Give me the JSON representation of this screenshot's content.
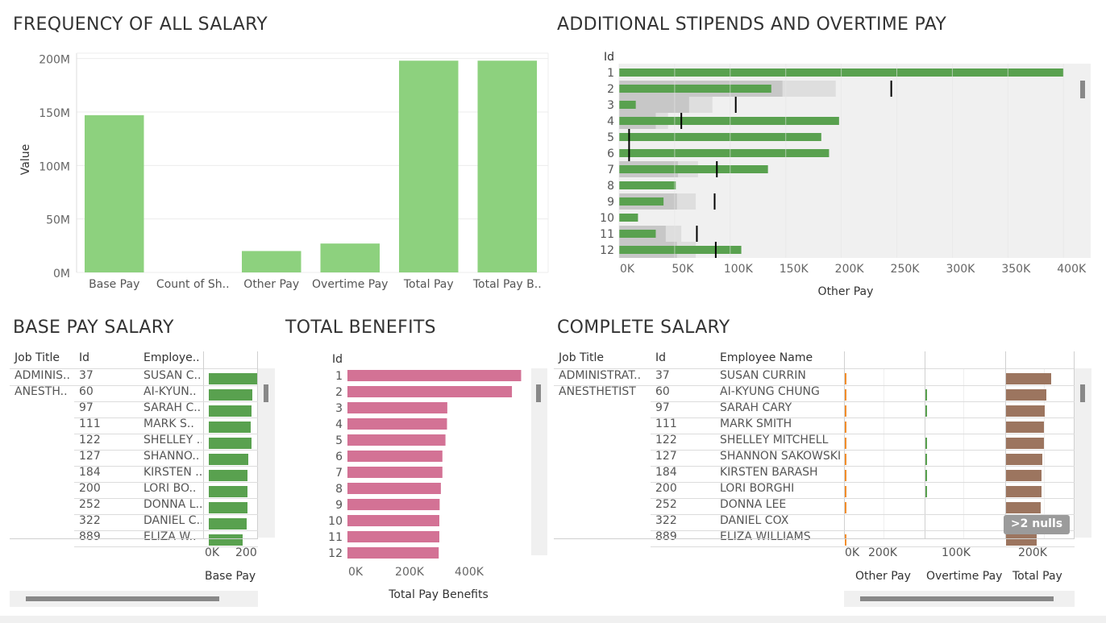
{
  "colors": {
    "green_light": "#8dd17e",
    "green": "#59a14f",
    "pink": "#d37295",
    "orange": "#f28e2b",
    "brown": "#9c755f",
    "band_dark": "#c7c7c7",
    "band_light": "#dedede",
    "panel_bg": "#f0f0f0"
  },
  "titles": {
    "freq": "FREQUENCY OF ALL SALARY",
    "stipends": "ADDITIONAL STIPENDS AND OVERTIME PAY",
    "base": "BASE PAY SALARY",
    "benefits": "TOTAL BENEFITS",
    "complete": "COMPLETE SALARY"
  },
  "chart_data": [
    {
      "type": "bar",
      "title": "FREQUENCY OF ALL SALARY",
      "ylabel": "Value",
      "categories": [
        "Base Pay",
        "Count of Sh..",
        "Other Pay",
        "Overtime Pay",
        "Total Pay",
        "Total Pay B.."
      ],
      "values": [
        147,
        0,
        20,
        27,
        198,
        198
      ],
      "unit": "M",
      "ylim": [
        0,
        205
      ],
      "yticks": [
        "0M",
        "50M",
        "100M",
        "150M",
        "200M"
      ],
      "grid": true
    },
    {
      "type": "bar",
      "title": "ADDITIONAL STIPENDS AND OVERTIME PAY",
      "orientation": "horizontal",
      "category_label": "Id",
      "xlabel": "Other Pay",
      "categories": [
        "1",
        "2",
        "3",
        "4",
        "5",
        "6",
        "7",
        "8",
        "9",
        "10",
        "11",
        "12"
      ],
      "values": [
        400000,
        137000,
        15000,
        198000,
        182000,
        189000,
        134000,
        51000,
        40000,
        17000,
        33000,
        110000
      ],
      "reference_marks": [
        null,
        245000,
        105000,
        56000,
        9000,
        9000,
        88000,
        null,
        86000,
        null,
        70000,
        87000
      ],
      "band_light": [
        null,
        195000,
        84000,
        44000,
        null,
        null,
        71000,
        null,
        69000,
        null,
        56000,
        69000
      ],
      "band_dark": [
        null,
        147000,
        63000,
        33000,
        null,
        null,
        53000,
        null,
        52000,
        null,
        42000,
        52000
      ],
      "xlim": [
        0,
        410000
      ],
      "xticks": [
        "0K",
        "50K",
        "100K",
        "150K",
        "200K",
        "250K",
        "300K",
        "350K",
        "400K"
      ]
    },
    {
      "type": "table",
      "title": "BASE PAY SALARY",
      "columns": [
        "Job Title",
        "Id",
        "Employe..",
        "Base Pay"
      ],
      "job_titles": [
        "ADMINIS..",
        "ANESTH.."
      ],
      "ids": [
        "37",
        "60",
        "97",
        "111",
        "122",
        "127",
        "184",
        "200",
        "252",
        "322",
        "889"
      ],
      "names": [
        "SUSAN C..",
        "AI-KYUN..",
        "SARAH C..",
        "MARK S..",
        "SHELLEY ..",
        "SHANNO..",
        "KIRSTEN ..",
        "LORI BO..",
        "DONNA L..",
        "DANIEL C..",
        "ELIZA W.."
      ],
      "base_pay": [
        290000,
        263000,
        257000,
        253000,
        254000,
        239000,
        233000,
        233000,
        230000,
        229000,
        203000
      ],
      "xlim": [
        0,
        290000
      ],
      "xticks": [
        "0K",
        "200"
      ]
    },
    {
      "type": "bar",
      "title": "TOTAL BENEFITS",
      "orientation": "horizontal",
      "category_label": "Id",
      "xlabel": "Total Pay Benefits",
      "categories": [
        "1",
        "2",
        "3",
        "4",
        "5",
        "6",
        "7",
        "8",
        "9",
        "10",
        "11",
        "12"
      ],
      "values": [
        567000,
        537000,
        326000,
        325000,
        320000,
        310000,
        310000,
        305000,
        301000,
        300000,
        300000,
        298000
      ],
      "xlim": [
        -30000,
        600000
      ],
      "xticks": [
        "0K",
        "200K",
        "400K"
      ]
    },
    {
      "type": "table",
      "title": "COMPLETE SALARY",
      "columns": [
        "Job Title",
        "Id",
        "Employee Name",
        "Other Pay",
        "Overtime Pay",
        "Total Pay"
      ],
      "job_titles": [
        "ADMINISTRAT..",
        "ANESTHETIST"
      ],
      "ids": [
        "37",
        "60",
        "97",
        "111",
        "122",
        "127",
        "184",
        "200",
        "252",
        "322",
        "889"
      ],
      "names": [
        "SUSAN CURRIN",
        "AI-KYUNG CHUNG",
        "SARAH CARY",
        "MARK SMITH",
        "SHELLEY MITCHELL",
        "SHANNON SAKOWSKI",
        "KIRSTEN BARASH",
        "LORI BORGHI",
        "DONNA LEE",
        "DANIEL COX",
        "ELIZA WILLIAMS"
      ],
      "other_pay": [
        2000,
        3000,
        2000,
        2000,
        1000,
        2000,
        2000,
        1000,
        2000,
        null,
        1000
      ],
      "overtime_pay": [
        0,
        4000,
        1000,
        0,
        1000,
        3000,
        2000,
        1000,
        0,
        null,
        0
      ],
      "total_pay": [
        302000,
        270000,
        258000,
        254000,
        255000,
        242000,
        236000,
        236000,
        232000,
        229000,
        205000
      ],
      "other_xticks": [
        "0K",
        "200K"
      ],
      "overtime_xticks": [
        "100K"
      ],
      "total_xticks": [
        "200K"
      ],
      "nulls_badge": ">2 nulls"
    }
  ]
}
